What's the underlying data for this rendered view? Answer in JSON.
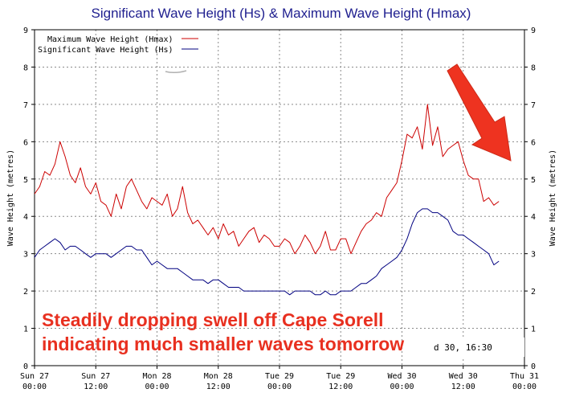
{
  "chart_data": {
    "type": "line",
    "title": "Significant Wave Height (Hs) & Maximum Wave Height (Hmax)",
    "ylabel_left": "Wave Height (metres)",
    "ylabel_right": "Wave Height (metres)",
    "ylim": [
      0,
      9
    ],
    "yticks": [
      0,
      1,
      2,
      3,
      4,
      5,
      6,
      7,
      8,
      9
    ],
    "xlim_hours": [
      0,
      96
    ],
    "xticks": [
      {
        "h": 0,
        "line1": "Sun 27",
        "line2": "00:00"
      },
      {
        "h": 12,
        "line1": "Sun 27",
        "line2": "12:00"
      },
      {
        "h": 24,
        "line1": "Mon 28",
        "line2": "00:00"
      },
      {
        "h": 36,
        "line1": "Mon 28",
        "line2": "12:00"
      },
      {
        "h": 48,
        "line1": "Tue 29",
        "line2": "00:00"
      },
      {
        "h": 60,
        "line1": "Tue 29",
        "line2": "12:00"
      },
      {
        "h": 72,
        "line1": "Wed 30",
        "line2": "00:00"
      },
      {
        "h": 84,
        "line1": "Wed 30",
        "line2": "12:00"
      },
      {
        "h": 96,
        "line1": "Thu 31",
        "line2": "00:00"
      }
    ],
    "grid": true,
    "legend_position": "top-left",
    "series": [
      {
        "name": "Maximum Wave Height (Hmax)",
        "color": "#cc0000",
        "x_hours": [
          0,
          1,
          2,
          3,
          4,
          5,
          6,
          7,
          8,
          9,
          10,
          11,
          12,
          13,
          14,
          15,
          16,
          17,
          18,
          19,
          20,
          21,
          22,
          23,
          24,
          25,
          26,
          27,
          28,
          29,
          30,
          31,
          32,
          33,
          34,
          35,
          36,
          37,
          38,
          39,
          40,
          41,
          42,
          43,
          44,
          45,
          46,
          47,
          48,
          49,
          50,
          51,
          52,
          53,
          54,
          55,
          56,
          57,
          58,
          59,
          60,
          61,
          62,
          63,
          64,
          65,
          66,
          67,
          68,
          69,
          70,
          71,
          72,
          73,
          74,
          75,
          76,
          77,
          78,
          79,
          80,
          81,
          82,
          83,
          84,
          85,
          86,
          87,
          88,
          89,
          90,
          91
        ],
        "values": [
          4.6,
          4.8,
          5.2,
          5.1,
          5.4,
          6.0,
          5.6,
          5.1,
          4.9,
          5.3,
          4.8,
          4.6,
          4.9,
          4.4,
          4.3,
          4.0,
          4.6,
          4.2,
          4.8,
          5.0,
          4.7,
          4.4,
          4.2,
          4.5,
          4.4,
          4.3,
          4.6,
          4.0,
          4.2,
          4.8,
          4.1,
          3.8,
          3.9,
          3.7,
          3.5,
          3.7,
          3.4,
          3.8,
          3.5,
          3.6,
          3.2,
          3.4,
          3.6,
          3.7,
          3.3,
          3.5,
          3.4,
          3.2,
          3.2,
          3.4,
          3.3,
          3.0,
          3.2,
          3.5,
          3.3,
          3.0,
          3.2,
          3.6,
          3.1,
          3.1,
          3.4,
          3.4,
          3.0,
          3.3,
          3.6,
          3.8,
          3.9,
          4.1,
          4.0,
          4.5,
          4.7,
          4.9,
          5.5,
          6.2,
          6.1,
          6.4,
          5.8,
          7.0,
          5.9,
          6.4,
          5.6,
          5.8,
          5.9,
          6.0,
          5.5,
          5.1,
          5.0,
          5.0,
          4.4,
          4.5,
          4.3,
          4.4
        ]
      },
      {
        "name": "Significant Wave Height (Hs)",
        "color": "#000080",
        "x_hours": [
          0,
          1,
          2,
          3,
          4,
          5,
          6,
          7,
          8,
          9,
          10,
          11,
          12,
          13,
          14,
          15,
          16,
          17,
          18,
          19,
          20,
          21,
          22,
          23,
          24,
          25,
          26,
          27,
          28,
          29,
          30,
          31,
          32,
          33,
          34,
          35,
          36,
          37,
          38,
          39,
          40,
          41,
          42,
          43,
          44,
          45,
          46,
          47,
          48,
          49,
          50,
          51,
          52,
          53,
          54,
          55,
          56,
          57,
          58,
          59,
          60,
          61,
          62,
          63,
          64,
          65,
          66,
          67,
          68,
          69,
          70,
          71,
          72,
          73,
          74,
          75,
          76,
          77,
          78,
          79,
          80,
          81,
          82,
          83,
          84,
          85,
          86,
          87,
          88,
          89,
          90,
          91
        ],
        "values": [
          2.9,
          3.1,
          3.2,
          3.3,
          3.4,
          3.3,
          3.1,
          3.2,
          3.2,
          3.1,
          3.0,
          2.9,
          3.0,
          3.0,
          3.0,
          2.9,
          3.0,
          3.1,
          3.2,
          3.2,
          3.1,
          3.1,
          2.9,
          2.7,
          2.8,
          2.7,
          2.6,
          2.6,
          2.6,
          2.5,
          2.4,
          2.3,
          2.3,
          2.3,
          2.2,
          2.3,
          2.3,
          2.2,
          2.1,
          2.1,
          2.1,
          2.0,
          2.0,
          2.0,
          2.0,
          2.0,
          2.0,
          2.0,
          2.0,
          2.0,
          1.9,
          2.0,
          2.0,
          2.0,
          2.0,
          1.9,
          1.9,
          2.0,
          1.9,
          1.9,
          2.0,
          2.0,
          2.0,
          2.1,
          2.2,
          2.2,
          2.3,
          2.4,
          2.6,
          2.7,
          2.8,
          2.9,
          3.1,
          3.4,
          3.8,
          4.1,
          4.2,
          4.2,
          4.1,
          4.1,
          4.0,
          3.9,
          3.6,
          3.5,
          3.5,
          3.4,
          3.3,
          3.2,
          3.1,
          3.0,
          2.7,
          2.8
        ]
      }
    ]
  },
  "annotation": {
    "line1": "Steadily dropping swell off Cape Sorell",
    "line2": "indicating much smaller waves tomorrow",
    "timestamp": "d 30, 16:30",
    "arrow_color": "#ee3320"
  }
}
